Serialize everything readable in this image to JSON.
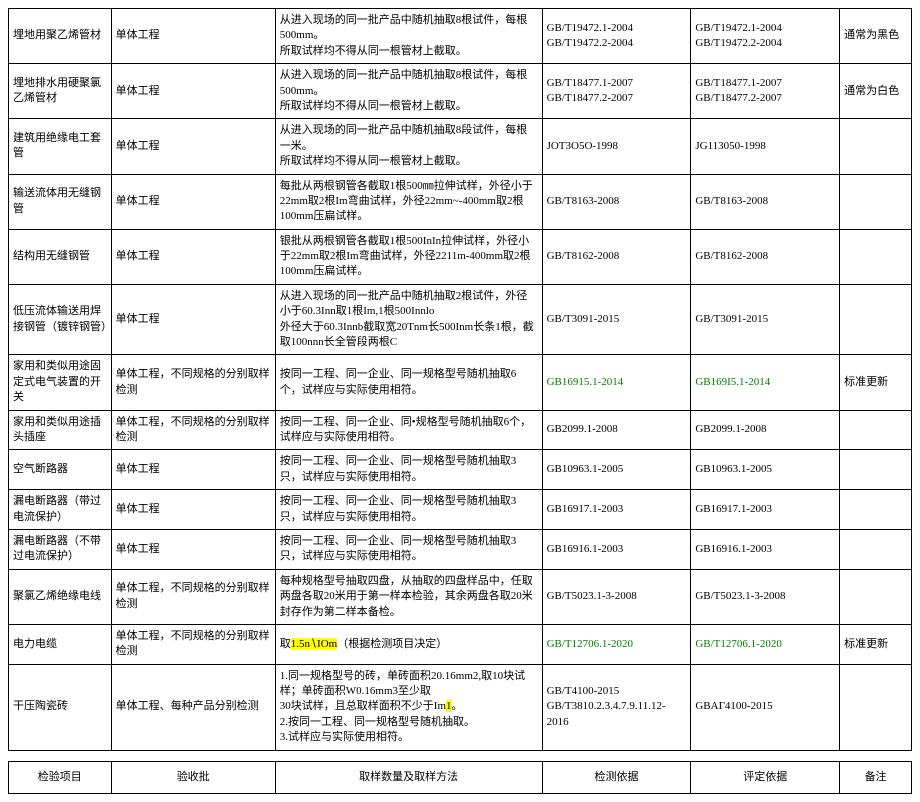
{
  "colors": {
    "background": "#ffffff",
    "border": "#000000",
    "text": "#000000",
    "highlight": "#ffff00",
    "green": "#008000"
  },
  "table": {
    "rows": [
      {
        "c1": "埋地用聚乙烯管材",
        "c2": "单体工程",
        "c3": "从进入现场的同一批产品中随机抽取8根试件，每根500mm。\n所取试样均不得从同一根管材上截取。",
        "c4": "GB/T19472.1-2004\nGB/T19472.2-2004",
        "c5": "GB/T19472.1-2004\nGB/T19472.2-2004",
        "c6": "通常为黑色"
      },
      {
        "c1": "埋地排水用硬聚氯乙烯管材",
        "c2": "单体工程",
        "c3": "从进入现场的同一批产品中随机抽取8根试件，每根500mm。\n所取试样均不得从同一根管材上截取。",
        "c4": "GB/T18477.1-2007\nGB/T18477.2-2007",
        "c5": "GB/T18477.1-2007\nGB/T18477.2-2007",
        "c6": "通常为白色"
      },
      {
        "c1": "建筑用绝缘电工套管",
        "c2": "单体工程",
        "c3": "从进入现场的同一批产品中随机抽取8段试件，每根一米。\n所取试样均不得从同一根管材上截取。",
        "c4": "JOT3O5O-1998",
        "c5": "JG113050-1998",
        "c6": ""
      },
      {
        "c1": "输送流体用无缝钢管",
        "c2": "单体工程",
        "c3": "每批从两根钢管各截取1根500㎜拉伸试样，外径小于22mm取2根Im弯曲试样，外径22mm~-400mm取2根100mm压扁试样。",
        "c4": "GB/T8163-2008",
        "c5": "GB/T8163-2008",
        "c6": ""
      },
      {
        "c1": "结构用无缝钢管",
        "c2": "单体工程",
        "c3": "银批从两根钢管各截取1根500InIn拉伸试样，外径小于22mm取2根Im弯曲试样，外径2211m-400mm取2根100mm压扁试样。",
        "c4": "GB/T8162-2008",
        "c5": "GB/T8162-2008",
        "c6": ""
      },
      {
        "c1": "低压流体输送用焊接钢管（镀锌钢管）",
        "c2": "单体工程",
        "c3": "从进入现场的同一批产品中随机抽取2根试件，外径小于60.3Inn取1根Im,1根500Innlo\n外径大于60.3Innb截取宽20Tnm长500Inm长条1根，截取100nnn长全管段两根C",
        "c4": "GB/T3091-2015",
        "c5": "GB/T3091-2015",
        "c6": ""
      },
      {
        "c1": "家用和类似用途固定式电气装置的开关",
        "c2": "单体工程，不同规格的分别取样检测",
        "c3": "按同一工程、同一企业、同一规格型号随机抽取6个，试样应与实际使用相符。",
        "c4": "GB16915.1-2014",
        "c4_green": true,
        "c5": "GB169I5.1-2014",
        "c5_green": true,
        "c6": "标准更新"
      },
      {
        "c1": "家用和类似用途插头插座",
        "c2": "单体工程，不同规格的分别取样检测",
        "c3": "按同一工程、同一企业、同•规格型号随机抽取6个，试样应与实际使用相符。",
        "c4": "GB2099.1-2008",
        "c5": "GB2099.1-2008",
        "c6": ""
      },
      {
        "c1": "空气断路器",
        "c2": "单体工程",
        "c3": "按同一工程、同一企业、同一规格型号随机抽取3只，试样应与实际使用相符。",
        "c4": "GB10963.1-2005",
        "c5": "GB10963.1-2005",
        "c6": ""
      },
      {
        "c1": "漏电断路器（带过电流保护）",
        "c2": "单体工程",
        "c3": "按同一工程、同一企业、同一规格型号随机抽取3只，试样应与实际使用相符。",
        "c4": "GB16917.1-2003",
        "c5": "GB16917.1-2003",
        "c6": ""
      },
      {
        "c1": "漏电断路器（不带过电流保护）",
        "c2": "单体工程",
        "c3": "按同一工程、同一企业、同一规格型号随机抽取3只，试样应与实际使用相符。",
        "c4": "GB16916.1-2003",
        "c5": "GB16916.1-2003",
        "c6": ""
      },
      {
        "c1": "聚氯乙烯绝缘电线",
        "c2": "单体工程，不同规格的分别取样检测",
        "c3": "每种规格型号抽取四盘，从抽取的四盘样品中，任取两盘各取20米用于第一样本检验，其余两盘各取20米封存作为第二样本备检。",
        "c4": "GB/T5023.1-3-2008",
        "c5": "GB/T5023.1-3-2008",
        "c6": ""
      },
      {
        "c1": "电力电缆",
        "c2": "单体工程，不同规格的分别取样检测",
        "c3_prefix": "取",
        "c3_hl": "1.5n∖IOm",
        "c3_suffix": "（根据检测项目决定）",
        "c4": "GB/T12706.1-2020",
        "c4_green": true,
        "c5": "GB/T12706.1-2020",
        "c5_green": true,
        "c6": "标准更新"
      },
      {
        "c1": "干压陶瓷砖",
        "c2": "单体工程、每种产品分别检测",
        "c3_prefix": "1.同一规格型号的砖，单砖面积20.16mm2,取10块试样；单砖面积W0.16mm3至少取\n30块试样，且总取样面积不少于Im",
        "c3_hl": "1",
        "c3_suffix": "。\n2.按同一工程、同一规格型号随机抽取。\n3.试样应与实际使用相符。",
        "c4": "GB/T4100-2015\nGB/T3810.2.3.4.7.9.11.12-2016",
        "c5": "GBAГ4100-2015",
        "c6": ""
      }
    ]
  },
  "header": {
    "h1": "检验项目",
    "h2": "验收批",
    "h3": "取样数量及取样方法",
    "h4": "检测依据",
    "h5": "评定依据",
    "h6": "备注"
  }
}
